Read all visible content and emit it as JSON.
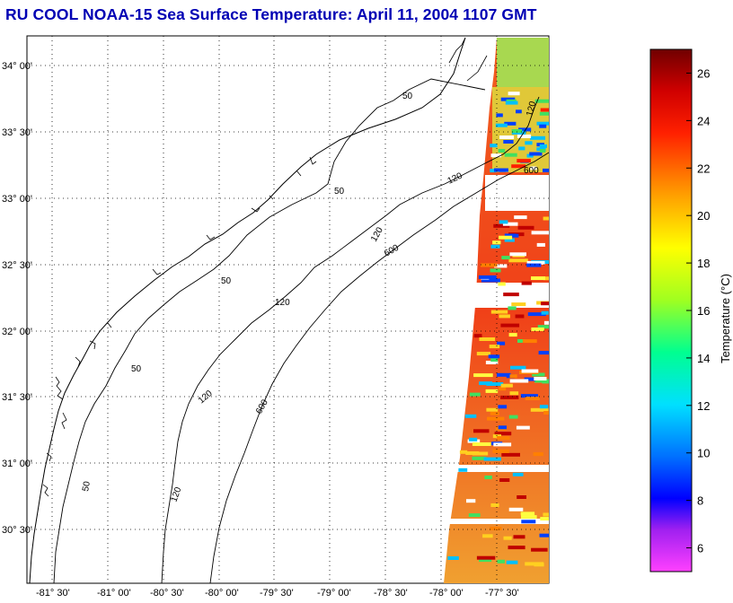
{
  "title": "RU COOL  NOAA-15  Sea Surface Temperature:  April 11, 2004 1107 GMT",
  "map": {
    "lat_labels": [
      "34° 00'",
      "33° 30'",
      "33° 00'",
      "32° 30'",
      "32° 00'",
      "31° 30'",
      "31° 00'",
      "30° 30'"
    ],
    "lon_labels": [
      "-81° 30'",
      "-81° 00'",
      "-80° 30'",
      "-80° 00'",
      "-79° 30'",
      "-79° 00'",
      "-78° 30'",
      "-78° 00'",
      "-77° 30'"
    ],
    "contour_labels": [
      "50",
      "50",
      "50",
      "50",
      "50",
      "120",
      "120",
      "120",
      "120",
      "120",
      "120",
      "600",
      "600",
      "600"
    ]
  },
  "colorbar": {
    "label": "Temperature (°C)",
    "ticks": [
      "26",
      "24",
      "22",
      "20",
      "18",
      "16",
      "14",
      "12",
      "10",
      "8",
      "6"
    ],
    "range": [
      5,
      27
    ]
  },
  "colors": {
    "title": "#0000b4",
    "coast": "#000000"
  }
}
